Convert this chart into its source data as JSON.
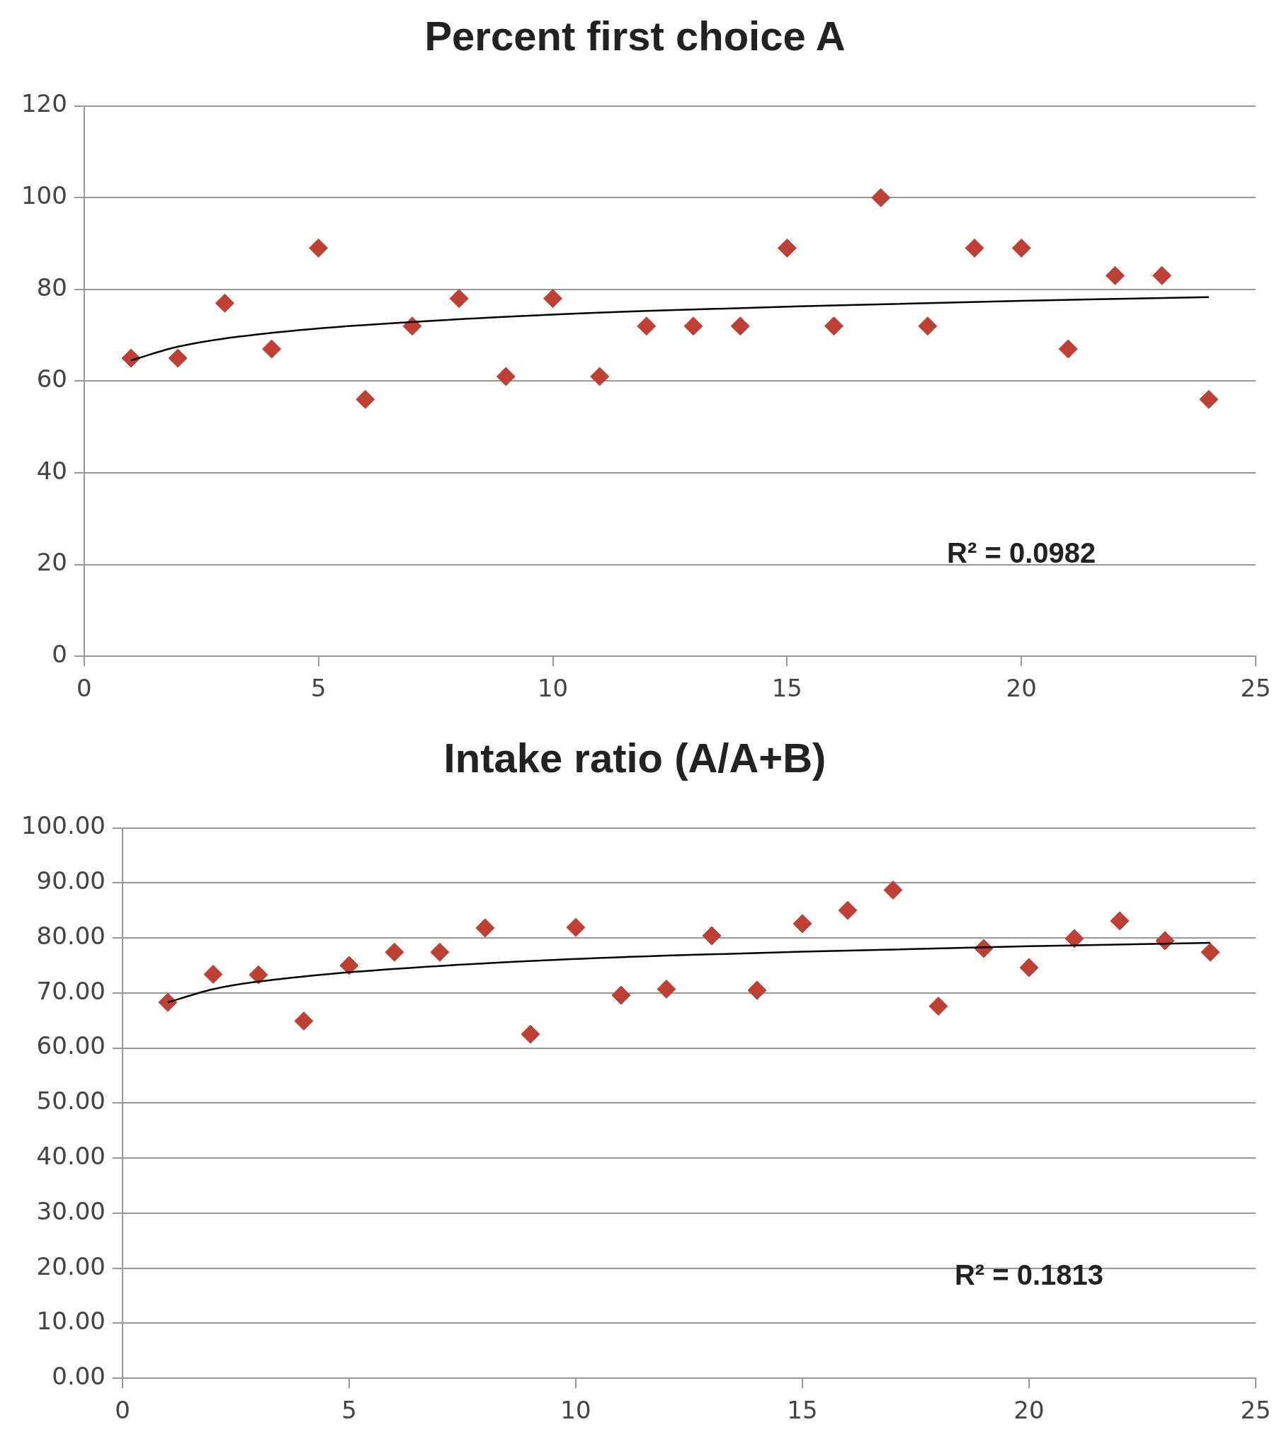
{
  "chart_data": [
    {
      "type": "scatter",
      "title": "Percent first choice A",
      "x": [
        1,
        2,
        3,
        4,
        5,
        6,
        7,
        8,
        9,
        10,
        11,
        12,
        13,
        14,
        15,
        16,
        17,
        18,
        19,
        20,
        21,
        22,
        23,
        24
      ],
      "series": [
        {
          "color": "#be4034",
          "marker": "diamond",
          "values": [
            65,
            65,
            77,
            67,
            89,
            56,
            72,
            78,
            61,
            78,
            61,
            72,
            72,
            72,
            89,
            72,
            100,
            72,
            89,
            89,
            67,
            83,
            83,
            56
          ]
        },
        {
          "type": "line",
          "color": "#000000",
          "marker": "none",
          "x": [
            1,
            2,
            4,
            8,
            12,
            16,
            20,
            24
          ],
          "values": [
            64.5,
            67.5,
            70.5,
            73.5,
            75.3,
            76.5,
            77.5,
            78.3
          ]
        }
      ],
      "xlim": [
        0,
        25
      ],
      "xticks": [
        0,
        5,
        10,
        15,
        20,
        25
      ],
      "ylim": [
        0,
        120
      ],
      "yticks": [
        0,
        20,
        40,
        60,
        80,
        100,
        120
      ],
      "grid": "y",
      "legend": false,
      "annotations": [
        "R² = 0.0982"
      ]
    },
    {
      "type": "scatter",
      "title": "Intake ratio (A/A+B)",
      "x": [
        1,
        2,
        3,
        4,
        5,
        6,
        7,
        8,
        9,
        10,
        11,
        12,
        13,
        14,
        15,
        16,
        17,
        18,
        19,
        20,
        21,
        22,
        23,
        24
      ],
      "series": [
        {
          "color": "#be4034",
          "marker": "diamond",
          "values": [
            68.3,
            73.4,
            73.3,
            64.9,
            75.0,
            77.4,
            77.4,
            81.8,
            62.5,
            81.9,
            69.6,
            70.7,
            80.4,
            70.5,
            82.6,
            85.0,
            88.7,
            67.6,
            78.1,
            74.6,
            79.9,
            83.1,
            79.5,
            77.4
          ]
        },
        {
          "type": "line",
          "color": "#000000",
          "marker": "none",
          "x": [
            1,
            2,
            4,
            8,
            12,
            16,
            20,
            24
          ],
          "values": [
            68.3,
            70.7,
            73.0,
            75.4,
            76.8,
            77.7,
            78.5,
            79.1
          ]
        }
      ],
      "xlim": [
        0,
        25
      ],
      "xticks": [
        0,
        5,
        10,
        15,
        20,
        25
      ],
      "ylim": [
        0,
        100
      ],
      "yticks": [
        {
          "value": 0,
          "label": "0.00"
        },
        {
          "value": 10,
          "label": "10.00"
        },
        {
          "value": 20,
          "label": "20.00"
        },
        {
          "value": 30,
          "label": "30.00"
        },
        {
          "value": 40,
          "label": "40.00"
        },
        {
          "value": 50,
          "label": "50.00"
        },
        {
          "value": 60,
          "label": "60.00"
        },
        {
          "value": 70,
          "label": "70.00"
        },
        {
          "value": 80,
          "label": "80.00"
        },
        {
          "value": 90,
          "label": "90.00"
        },
        {
          "value": 100,
          "label": "100.00"
        }
      ],
      "grid": "y",
      "legend": false,
      "annotations": [
        "R² = 0.1813"
      ]
    }
  ]
}
